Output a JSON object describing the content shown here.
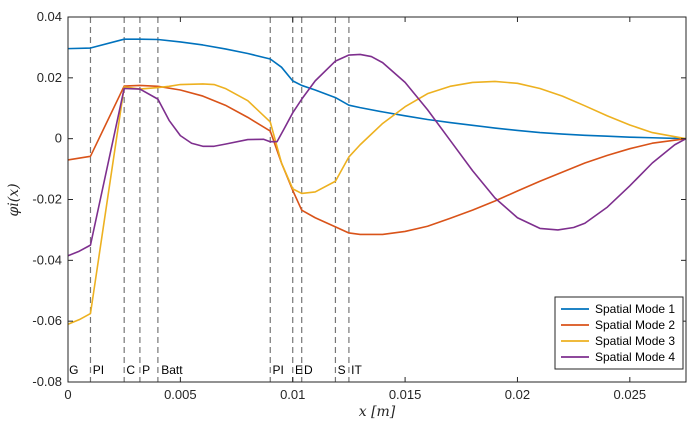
{
  "chart_data": {
    "type": "line",
    "xlabel": "x [m]",
    "ylabel": "φi(x)",
    "xlim": [
      0,
      0.0275
    ],
    "ylim": [
      -0.08,
      0.04
    ],
    "x_ticks": [
      0,
      0.005,
      0.01,
      0.015,
      0.02,
      0.025
    ],
    "x_tick_labels": [
      "0",
      "0.005",
      "0.01",
      "0.015",
      "0.02",
      "0.025"
    ],
    "y_ticks": [
      -0.08,
      -0.06,
      -0.04,
      -0.02,
      0,
      0.02,
      0.04
    ],
    "y_tick_labels": [
      "-0.08",
      "-0.06",
      "-0.04",
      "-0.02",
      "0",
      "0.02",
      "0.04"
    ],
    "grid": false,
    "legend_position": "bottom-right",
    "region_boundaries": [
      0.001,
      0.0025,
      0.0032,
      0.004,
      0.009,
      0.01,
      0.0104,
      0.0119,
      0.0125
    ],
    "region_labels": [
      {
        "text": "G",
        "x": 5e-05
      },
      {
        "text": "PI",
        "x": 0.0011
      },
      {
        "text": "C",
        "x": 0.0026
      },
      {
        "text": "P",
        "x": 0.0033
      },
      {
        "text": "Batt",
        "x": 0.00415
      },
      {
        "text": "PI",
        "x": 0.0091
      },
      {
        "text": "E",
        "x": 0.0101
      },
      {
        "text": "D",
        "x": 0.0105
      },
      {
        "text": "S",
        "x": 0.012
      },
      {
        "text": "IT",
        "x": 0.0126
      }
    ],
    "series": [
      {
        "name": "Spatial Mode 1",
        "color": "#0072BD",
        "points": [
          [
            0,
            0.0296
          ],
          [
            0.001,
            0.0298
          ],
          [
            0.0025,
            0.0327
          ],
          [
            0.0032,
            0.0327
          ],
          [
            0.004,
            0.0326
          ],
          [
            0.005,
            0.0318
          ],
          [
            0.006,
            0.0308
          ],
          [
            0.007,
            0.0295
          ],
          [
            0.008,
            0.028
          ],
          [
            0.009,
            0.0262
          ],
          [
            0.0095,
            0.0235
          ],
          [
            0.01,
            0.019
          ],
          [
            0.0104,
            0.0175
          ],
          [
            0.011,
            0.016
          ],
          [
            0.0119,
            0.0135
          ],
          [
            0.0125,
            0.011
          ],
          [
            0.013,
            0.0102
          ],
          [
            0.014,
            0.0088
          ],
          [
            0.015,
            0.0075
          ],
          [
            0.016,
            0.0063
          ],
          [
            0.017,
            0.0053
          ],
          [
            0.018,
            0.0044
          ],
          [
            0.019,
            0.0035
          ],
          [
            0.02,
            0.0027
          ],
          [
            0.021,
            0.002
          ],
          [
            0.022,
            0.0015
          ],
          [
            0.023,
            0.0011
          ],
          [
            0.024,
            0.0008
          ],
          [
            0.025,
            0.0005
          ],
          [
            0.026,
            0.0003
          ],
          [
            0.0275,
            0.0
          ]
        ]
      },
      {
        "name": "Spatial Mode 2",
        "color": "#D95319",
        "points": [
          [
            0,
            -0.007
          ],
          [
            0.001,
            -0.0058
          ],
          [
            0.0025,
            0.0173
          ],
          [
            0.0032,
            0.0175
          ],
          [
            0.004,
            0.0172
          ],
          [
            0.005,
            0.016
          ],
          [
            0.006,
            0.014
          ],
          [
            0.007,
            0.011
          ],
          [
            0.008,
            0.007
          ],
          [
            0.009,
            0.0025
          ],
          [
            0.0095,
            -0.008
          ],
          [
            0.01,
            -0.017
          ],
          [
            0.0104,
            -0.0235
          ],
          [
            0.011,
            -0.026
          ],
          [
            0.0119,
            -0.029
          ],
          [
            0.0125,
            -0.031
          ],
          [
            0.013,
            -0.0315
          ],
          [
            0.014,
            -0.0315
          ],
          [
            0.015,
            -0.0305
          ],
          [
            0.016,
            -0.0288
          ],
          [
            0.017,
            -0.0262
          ],
          [
            0.018,
            -0.0235
          ],
          [
            0.019,
            -0.0205
          ],
          [
            0.02,
            -0.0172
          ],
          [
            0.021,
            -0.014
          ],
          [
            0.022,
            -0.011
          ],
          [
            0.023,
            -0.008
          ],
          [
            0.024,
            -0.0055
          ],
          [
            0.025,
            -0.0033
          ],
          [
            0.026,
            -0.0015
          ],
          [
            0.0275,
            0.0
          ]
        ]
      },
      {
        "name": "Spatial Mode 3",
        "color": "#EDB120",
        "points": [
          [
            0,
            -0.061
          ],
          [
            0.0005,
            -0.0595
          ],
          [
            0.001,
            -0.0575
          ],
          [
            0.0025,
            0.017
          ],
          [
            0.0032,
            0.0163
          ],
          [
            0.004,
            0.0168
          ],
          [
            0.0045,
            0.0172
          ],
          [
            0.005,
            0.0178
          ],
          [
            0.006,
            0.018
          ],
          [
            0.0065,
            0.0178
          ],
          [
            0.007,
            0.0165
          ],
          [
            0.008,
            0.0125
          ],
          [
            0.009,
            0.0055
          ],
          [
            0.0095,
            -0.008
          ],
          [
            0.01,
            -0.0165
          ],
          [
            0.0104,
            -0.018
          ],
          [
            0.011,
            -0.0175
          ],
          [
            0.0119,
            -0.014
          ],
          [
            0.0125,
            -0.006
          ],
          [
            0.013,
            -0.002
          ],
          [
            0.014,
            0.005
          ],
          [
            0.015,
            0.0105
          ],
          [
            0.016,
            0.0148
          ],
          [
            0.017,
            0.0172
          ],
          [
            0.018,
            0.0185
          ],
          [
            0.019,
            0.0188
          ],
          [
            0.02,
            0.0182
          ],
          [
            0.021,
            0.0165
          ],
          [
            0.022,
            0.014
          ],
          [
            0.023,
            0.0108
          ],
          [
            0.024,
            0.0075
          ],
          [
            0.025,
            0.0045
          ],
          [
            0.026,
            0.002
          ],
          [
            0.0275,
            0.0
          ]
        ]
      },
      {
        "name": "Spatial Mode 4",
        "color": "#7E2F8E",
        "points": [
          [
            0,
            -0.0385
          ],
          [
            0.0005,
            -0.037
          ],
          [
            0.001,
            -0.035
          ],
          [
            0.0025,
            0.0165
          ],
          [
            0.0032,
            0.0163
          ],
          [
            0.004,
            0.013
          ],
          [
            0.0045,
            0.006
          ],
          [
            0.005,
            0.001
          ],
          [
            0.0055,
            -0.0015
          ],
          [
            0.006,
            -0.0025
          ],
          [
            0.0065,
            -0.0025
          ],
          [
            0.007,
            -0.0018
          ],
          [
            0.008,
            -0.0003
          ],
          [
            0.0087,
            -0.0002
          ],
          [
            0.009,
            -0.001
          ],
          [
            0.0093,
            -0.001
          ],
          [
            0.0096,
            0.003
          ],
          [
            0.01,
            0.0085
          ],
          [
            0.0104,
            0.013
          ],
          [
            0.011,
            0.019
          ],
          [
            0.0119,
            0.0255
          ],
          [
            0.0125,
            0.0275
          ],
          [
            0.013,
            0.0277
          ],
          [
            0.0135,
            0.027
          ],
          [
            0.014,
            0.025
          ],
          [
            0.015,
            0.0185
          ],
          [
            0.016,
            0.0095
          ],
          [
            0.017,
            -0.0005
          ],
          [
            0.018,
            -0.0105
          ],
          [
            0.019,
            -0.0195
          ],
          [
            0.02,
            -0.026
          ],
          [
            0.021,
            -0.0295
          ],
          [
            0.0218,
            -0.03
          ],
          [
            0.0225,
            -0.0292
          ],
          [
            0.023,
            -0.0278
          ],
          [
            0.024,
            -0.0225
          ],
          [
            0.025,
            -0.0155
          ],
          [
            0.026,
            -0.008
          ],
          [
            0.027,
            -0.002
          ],
          [
            0.0275,
            0.0
          ]
        ]
      }
    ]
  }
}
